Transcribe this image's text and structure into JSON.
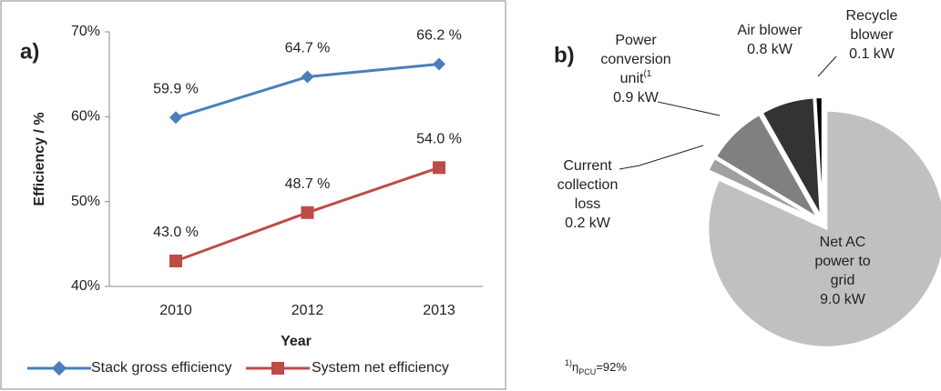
{
  "chart_data": [
    {
      "type": "line",
      "panel": "a)",
      "xlabel": "Year",
      "ylabel": "Efficiency / %",
      "categories": [
        "2010",
        "2012",
        "2013"
      ],
      "series": [
        {
          "name": "Stack gross efficiency",
          "color": "#4a7ebb",
          "marker": "diamond",
          "values": [
            59.9,
            64.7,
            66.2
          ],
          "value_labels": [
            "59.9 %",
            "64.7 %",
            "66.2 %"
          ]
        },
        {
          "name": "System net efficiency",
          "color": "#be4b48",
          "marker": "square",
          "values": [
            43.0,
            48.7,
            54.0
          ],
          "value_labels": [
            "43.0 %",
            "48.7 %",
            "54.0 %"
          ]
        }
      ],
      "ylim": [
        40,
        70
      ],
      "yticks": [
        {
          "value": 40,
          "label": "40%"
        },
        {
          "value": 50,
          "label": "50%"
        },
        {
          "value": 60,
          "label": "60%"
        },
        {
          "value": 70,
          "label": "70%"
        }
      ],
      "legend": "bottom"
    },
    {
      "type": "pie",
      "panel": "b)",
      "categories": [
        [
          "Net AC",
          "power to",
          "grid"
        ],
        [
          "Current",
          "collection",
          "loss"
        ],
        [
          "Power",
          "conversion",
          "unit"
        ],
        [
          "Air blower"
        ],
        [
          "Recycle",
          "blower"
        ]
      ],
      "category_notes": [
        null,
        null,
        "(1",
        null,
        null
      ],
      "values": [
        9.0,
        0.2,
        0.9,
        0.8,
        0.1
      ],
      "value_labels": [
        "9.0 kW",
        "0.2 kW",
        "0.9 kW",
        "0.8 kW",
        "0.1 kW"
      ],
      "colors": [
        "#c0c0c0",
        "#a0a0a0",
        "#808080",
        "#333333",
        "#000000"
      ],
      "footnote": {
        "marker": "1)",
        "symbol": "η",
        "subscript": "PCU",
        "text": "=92%"
      }
    }
  ]
}
